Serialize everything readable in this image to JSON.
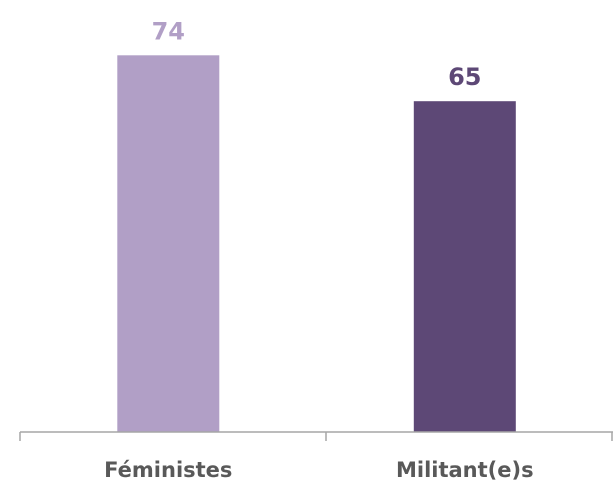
{
  "chart_data": {
    "type": "bar",
    "categories": [
      "Féministes",
      "Militant(e)s"
    ],
    "values": [
      74,
      65
    ],
    "data_labels": [
      "74",
      "65"
    ],
    "colors": [
      "#b19fc6",
      "#5d4876"
    ],
    "label_colors": [
      "#b19fc6",
      "#5d4876"
    ],
    "title": "",
    "xlabel": "",
    "ylabel": "",
    "ylim": [
      0,
      82
    ],
    "grid": false,
    "legend": "none"
  }
}
